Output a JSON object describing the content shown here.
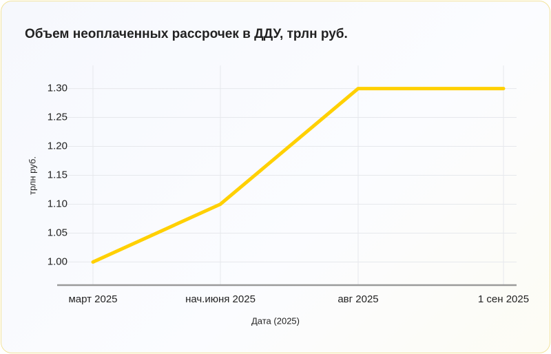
{
  "chart_data": {
    "type": "line",
    "title": "Объем неоплаченных рассрочек в ДДУ, трлн руб.",
    "x_label": "Дата (2025)",
    "y_label": "трлн руб.",
    "categories": [
      "март 2025",
      "нач.июня 2025",
      "авг 2025",
      "1 сен 2025"
    ],
    "series": [
      {
        "name": "Объем неоплаченных рассрочек",
        "color": "#ffd000",
        "values": [
          1.0,
          1.1,
          1.3,
          1.3
        ]
      }
    ],
    "ylim": [
      0.96,
      1.34
    ],
    "yticks": [
      {
        "value": 1.0,
        "label": "1.00"
      },
      {
        "value": 1.05,
        "label": "1.05"
      },
      {
        "value": 1.1,
        "label": "1.10"
      },
      {
        "value": 1.15,
        "label": "1.15"
      },
      {
        "value": 1.2,
        "label": "1.20"
      },
      {
        "value": 1.25,
        "label": "1.25"
      },
      {
        "value": 1.3,
        "label": "1.30"
      }
    ],
    "grid": true
  }
}
